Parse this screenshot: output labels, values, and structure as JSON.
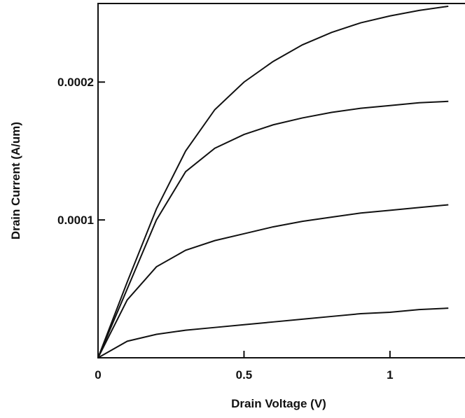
{
  "chart_data": {
    "type": "line",
    "x_label": "Drain Voltage (V)",
    "y_label": "Drain Current (A/um)",
    "x": [
      0,
      0.1,
      0.2,
      0.3,
      0.4,
      0.5,
      0.6,
      0.7,
      0.8,
      0.9,
      1.0,
      1.1,
      1.2
    ],
    "series": [
      {
        "color": "#111111",
        "values": [
          0,
          5.5e-05,
          0.000108,
          0.00015,
          0.00018,
          0.0002,
          0.000215,
          0.000227,
          0.000236,
          0.000243,
          0.000248,
          0.000252,
          0.000255
        ]
      },
      {
        "color": "#111111",
        "values": [
          0,
          5e-05,
          0.0001,
          0.000135,
          0.000152,
          0.000162,
          0.000169,
          0.000174,
          0.000178,
          0.000181,
          0.000183,
          0.000185,
          0.000186
        ]
      },
      {
        "color": "#111111",
        "values": [
          0,
          4.2e-05,
          6.6e-05,
          7.8e-05,
          8.5e-05,
          9e-05,
          9.5e-05,
          9.9e-05,
          0.000102,
          0.000105,
          0.000107,
          0.000109,
          0.000111
        ]
      },
      {
        "color": "#111111",
        "values": [
          0,
          1.2e-05,
          1.7e-05,
          2e-05,
          2.2e-05,
          2.4e-05,
          2.6e-05,
          2.8e-05,
          3e-05,
          3.2e-05,
          3.3e-05,
          3.5e-05,
          3.6e-05
        ]
      }
    ],
    "xlim": [
      0,
      1.257
    ],
    "ylim": [
      0,
      0.000257
    ],
    "xticks": [
      0,
      0.5,
      1
    ],
    "yticks": [
      0.0001,
      0.0002
    ]
  }
}
